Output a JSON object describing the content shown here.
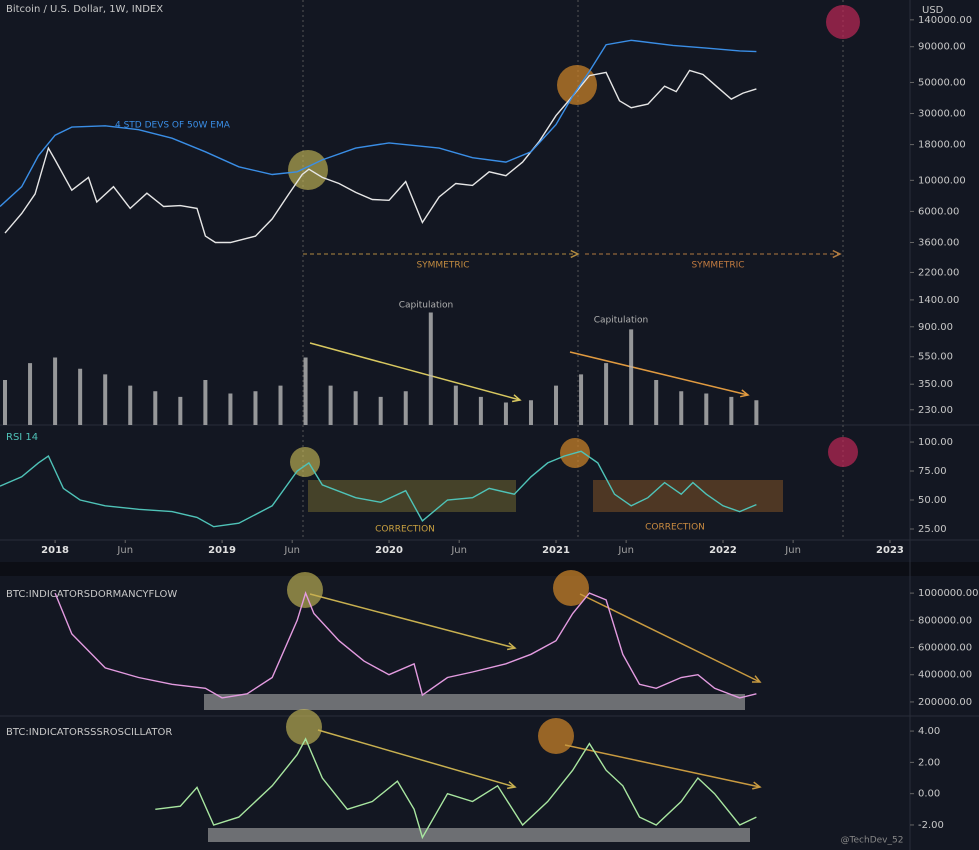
{
  "chart_data": [
    {
      "type": "line",
      "title": "Bitcoin / U.S. Dollar, 1W, INDEX",
      "y_label": "USD",
      "log_scale": true,
      "xlim": [
        2017.67,
        2023.12
      ],
      "ylim": [
        179,
        194000
      ],
      "yticks": [
        {
          "value": 140000,
          "label": "140000.00"
        },
        {
          "value": 90000,
          "label": "90000.00"
        },
        {
          "value": 50000,
          "label": "50000.00"
        },
        {
          "value": 30000,
          "label": "30000.00"
        },
        {
          "value": 18000,
          "label": "18000.00"
        },
        {
          "value": 10000,
          "label": "10000.00"
        },
        {
          "value": 6000,
          "label": "6000.00"
        },
        {
          "value": 3600,
          "label": "3600.00"
        },
        {
          "value": 2200,
          "label": "2200.00"
        },
        {
          "value": 1400,
          "label": "1400.00"
        },
        {
          "value": 900,
          "label": "900.00"
        },
        {
          "value": 550,
          "label": "550.00"
        },
        {
          "value": 350,
          "label": "350.00"
        },
        {
          "value": 230,
          "label": "230.00"
        }
      ],
      "series": [
        {
          "color": "#e6e6e6",
          "x": [
            2017.7,
            2017.8,
            2017.88,
            2017.96,
            2018.0,
            2018.1,
            2018.2,
            2018.25,
            2018.35,
            2018.45,
            2018.55,
            2018.65,
            2018.75,
            2018.85,
            2018.9,
            2018.96,
            2019.05,
            2019.2,
            2019.3,
            2019.4,
            2019.48,
            2019.52,
            2019.6,
            2019.7,
            2019.8,
            2019.9,
            2020.0,
            2020.1,
            2020.2,
            2020.3,
            2020.4,
            2020.5,
            2020.6,
            2020.7,
            2020.8,
            2020.9,
            2021.0,
            2021.1,
            2021.2,
            2021.3,
            2021.38,
            2021.45,
            2021.55,
            2021.65,
            2021.72,
            2021.8,
            2021.88,
            2021.96,
            2022.05,
            2022.12,
            2022.2
          ],
          "values": [
            4200,
            5800,
            8000,
            17000,
            14000,
            8500,
            10500,
            7000,
            9000,
            6300,
            8100,
            6500,
            6600,
            6300,
            4000,
            3600,
            3600,
            4000,
            5300,
            8000,
            11000,
            12000,
            10500,
            9500,
            8200,
            7300,
            7200,
            9800,
            5000,
            7600,
            9500,
            9200,
            11500,
            10800,
            13500,
            19000,
            29000,
            40000,
            56000,
            59000,
            37000,
            33000,
            35000,
            47000,
            43000,
            61000,
            57000,
            47000,
            38000,
            42000,
            45000
          ]
        },
        {
          "name": "4 STD DEVS OF 50W EMA",
          "color": "#3a8ee6",
          "x": [
            2017.67,
            2017.8,
            2017.9,
            2018.0,
            2018.1,
            2018.3,
            2018.5,
            2018.7,
            2018.9,
            2019.1,
            2019.3,
            2019.45,
            2019.6,
            2019.8,
            2020.0,
            2020.3,
            2020.5,
            2020.7,
            2020.85,
            2021.0,
            2021.1,
            2021.2,
            2021.3,
            2021.45,
            2021.7,
            2021.9,
            2022.1,
            2022.2
          ],
          "values": [
            6500,
            9000,
            15000,
            21000,
            24000,
            24500,
            23000,
            20000,
            16000,
            12500,
            11000,
            11500,
            14000,
            17000,
            18500,
            17000,
            14500,
            13500,
            16000,
            25000,
            40000,
            60000,
            93000,
            100000,
            92000,
            88000,
            84000,
            83000
          ]
        }
      ],
      "annotations": [
        "SYMMETRIC",
        "SYMMETRIC"
      ]
    },
    {
      "type": "bar",
      "color": "#b8b8b8",
      "xlim": [
        2017.67,
        2023.12
      ],
      "ylim": [
        0,
        120
      ],
      "x": [
        2017.7,
        2017.85,
        2018.0,
        2018.15,
        2018.3,
        2018.45,
        2018.6,
        2018.75,
        2018.9,
        2019.05,
        2019.2,
        2019.35,
        2019.5,
        2019.65,
        2019.8,
        2019.95,
        2020.1,
        2020.25,
        2020.4,
        2020.55,
        2020.7,
        2020.85,
        2021.0,
        2021.15,
        2021.3,
        2021.45,
        2021.6,
        2021.75,
        2021.9,
        2022.05,
        2022.2
      ],
      "values": [
        40,
        55,
        60,
        50,
        45,
        35,
        30,
        25,
        40,
        28,
        30,
        35,
        60,
        35,
        30,
        25,
        30,
        100,
        35,
        25,
        20,
        22,
        35,
        45,
        55,
        85,
        40,
        30,
        28,
        25,
        22
      ],
      "annotations": [
        "Capitulation",
        "Capitulation"
      ]
    },
    {
      "type": "line",
      "title": "RSI 14",
      "color": "#4fc3b8",
      "xlim": [
        2017.67,
        2023.12
      ],
      "ylim": [
        15.5,
        114.7
      ],
      "yticks": [
        {
          "value": 100,
          "label": "100.00"
        },
        {
          "value": 75,
          "label": "75.00"
        },
        {
          "value": 50,
          "label": "50.00"
        },
        {
          "value": 25,
          "label": "25.00"
        }
      ],
      "xticks": [
        {
          "value": 2018,
          "label": "2018"
        },
        {
          "value": 2018.42,
          "label": "Jun"
        },
        {
          "value": 2019,
          "label": "2019"
        },
        {
          "value": 2019.42,
          "label": "Jun"
        },
        {
          "value": 2020,
          "label": "2020"
        },
        {
          "value": 2020.42,
          "label": "Jun"
        },
        {
          "value": 2021,
          "label": "2021"
        },
        {
          "value": 2021.42,
          "label": "Jun"
        },
        {
          "value": 2022,
          "label": "2022"
        },
        {
          "value": 2022.42,
          "label": "Jun"
        },
        {
          "value": 2023,
          "label": "2023"
        }
      ],
      "x": [
        2017.67,
        2017.8,
        2017.9,
        2017.96,
        2018.05,
        2018.15,
        2018.3,
        2018.5,
        2018.7,
        2018.85,
        2018.95,
        2019.1,
        2019.3,
        2019.45,
        2019.52,
        2019.6,
        2019.8,
        2019.95,
        2020.1,
        2020.2,
        2020.35,
        2020.5,
        2020.6,
        2020.75,
        2020.85,
        2020.95,
        2021.05,
        2021.15,
        2021.25,
        2021.35,
        2021.45,
        2021.55,
        2021.65,
        2021.75,
        2021.82,
        2021.9,
        2022.0,
        2022.1,
        2022.2
      ],
      "values": [
        62,
        70,
        82,
        88,
        60,
        50,
        45,
        42,
        40,
        35,
        27,
        30,
        45,
        75,
        82,
        63,
        52,
        48,
        58,
        32,
        50,
        52,
        60,
        55,
        70,
        82,
        88,
        92,
        82,
        55,
        45,
        52,
        65,
        55,
        65,
        55,
        45,
        40,
        46
      ],
      "annotations": [
        "CORRECTION",
        "CORRECTION"
      ]
    },
    {
      "type": "line",
      "title": "BTC:INDICATORSDORMANCYFLOW",
      "color": "#e39be0",
      "xlim": [
        2017.67,
        2023.12
      ],
      "ylim": [
        104000,
        1111000
      ],
      "yticks": [
        {
          "value": 1000000,
          "label": "1000000.00"
        },
        {
          "value": 800000,
          "label": "800000.00"
        },
        {
          "value": 600000,
          "label": "600000.00"
        },
        {
          "value": 400000,
          "label": "400000.00"
        },
        {
          "value": 200000,
          "label": "200000.00"
        }
      ],
      "x": [
        2018.0,
        2018.1,
        2018.3,
        2018.5,
        2018.7,
        2018.9,
        2019.0,
        2019.15,
        2019.3,
        2019.45,
        2019.5,
        2019.55,
        2019.7,
        2019.85,
        2020.0,
        2020.15,
        2020.2,
        2020.35,
        2020.5,
        2020.7,
        2020.85,
        2021.0,
        2021.1,
        2021.2,
        2021.3,
        2021.4,
        2021.5,
        2021.6,
        2021.75,
        2021.85,
        2021.95,
        2022.1,
        2022.2
      ],
      "values": [
        1000000,
        700000,
        450000,
        380000,
        330000,
        300000,
        230000,
        260000,
        380000,
        800000,
        1000000,
        850000,
        650000,
        500000,
        400000,
        480000,
        250000,
        380000,
        420000,
        480000,
        550000,
        650000,
        850000,
        1000000,
        950000,
        550000,
        330000,
        300000,
        380000,
        400000,
        300000,
        230000,
        260000
      ]
    },
    {
      "type": "line",
      "title": "BTC:INDICATORSSSROSCILLATOR",
      "color": "#a8e6a0",
      "xlim": [
        2017.67,
        2023.12
      ],
      "ylim": [
        -3.6,
        4.9
      ],
      "yticks": [
        {
          "value": 4,
          "label": "4.00"
        },
        {
          "value": 2,
          "label": "2.00"
        },
        {
          "value": 0,
          "label": "0.00"
        },
        {
          "value": -2,
          "label": "-2.00"
        }
      ],
      "x": [
        2018.6,
        2018.75,
        2018.85,
        2018.95,
        2019.1,
        2019.3,
        2019.45,
        2019.5,
        2019.6,
        2019.75,
        2019.9,
        2020.05,
        2020.15,
        2020.2,
        2020.35,
        2020.5,
        2020.65,
        2020.8,
        2020.95,
        2021.1,
        2021.2,
        2021.3,
        2021.4,
        2021.5,
        2021.6,
        2021.75,
        2021.85,
        2021.95,
        2022.1,
        2022.2
      ],
      "values": [
        -1.0,
        -0.8,
        0.4,
        -2.0,
        -1.5,
        0.5,
        2.5,
        3.5,
        1.0,
        -1.0,
        -0.5,
        0.8,
        -1.0,
        -2.8,
        0.0,
        -0.5,
        0.5,
        -2.0,
        -0.5,
        1.5,
        3.2,
        1.5,
        0.5,
        -1.5,
        -2.0,
        -0.5,
        1.0,
        0.0,
        -2.0,
        -1.5
      ],
      "annotations": [
        "@TechDev_52"
      ]
    }
  ]
}
